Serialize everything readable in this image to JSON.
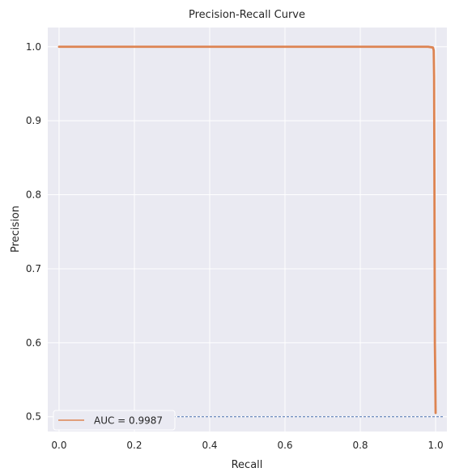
{
  "chart_data": {
    "type": "line",
    "title": "Precision-Recall Curve",
    "xlabel": "Recall",
    "ylabel": "Precision",
    "xlim": [
      -0.03,
      1.03
    ],
    "ylim": [
      0.48,
      1.026
    ],
    "grid": true,
    "x_ticks": [
      "0.0",
      "0.2",
      "0.4",
      "0.6",
      "0.8",
      "1.0"
    ],
    "y_ticks": [
      "0.5",
      "0.6",
      "0.7",
      "0.8",
      "0.9",
      "1.0"
    ],
    "series": [
      {
        "name": "AUC = 0.9987",
        "color": "#dd8452",
        "x": [
          0.0,
          0.1,
          0.2,
          0.3,
          0.4,
          0.5,
          0.6,
          0.7,
          0.8,
          0.9,
          0.98,
          0.993,
          0.995,
          0.996,
          0.997,
          0.998,
          0.999,
          1.0
        ],
        "y": [
          1.0,
          1.0,
          1.0,
          1.0,
          1.0,
          1.0,
          1.0,
          1.0,
          1.0,
          1.0,
          1.0,
          0.999,
          0.995,
          0.96,
          0.8,
          0.6,
          0.56,
          0.505
        ]
      }
    ],
    "baseline": {
      "y": 0.5,
      "color": "#4c72b0",
      "style": "dashed"
    },
    "legend": {
      "position": "lower-left"
    }
  }
}
